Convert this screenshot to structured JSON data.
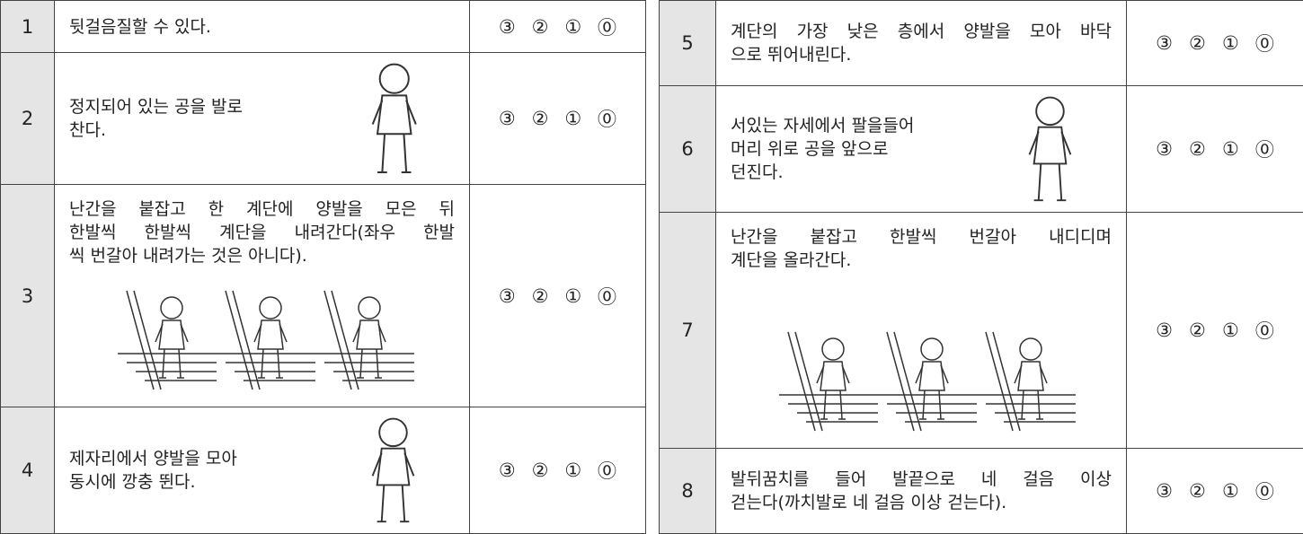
{
  "tables": [
    {
      "rows": [
        {
          "number": "1",
          "lines": [
            "뒷걸음질할 수 있다."
          ],
          "scores": [
            "③",
            "②",
            "①",
            "⓪"
          ]
        },
        {
          "number": "2",
          "lines": [
            "정지되어 있는 공을 발로",
            "찬다."
          ],
          "scores": [
            "③",
            "②",
            "①",
            "⓪"
          ]
        },
        {
          "number": "3",
          "lines": [
            "난간을 붙잡고 한 계단에 양발을 모은 뒤",
            "한발씩 한발씩 계단을 내려간다(좌우 한발",
            "씩 번갈아 내려가는 것은 아니다)."
          ],
          "scores": [
            "③",
            "②",
            "①",
            "⓪"
          ]
        },
        {
          "number": "4",
          "lines": [
            "제자리에서 양발을 모아",
            "동시에 깡충 뛴다."
          ],
          "scores": [
            "③",
            "②",
            "①",
            "⓪"
          ]
        }
      ]
    },
    {
      "rows": [
        {
          "number": "5",
          "lines": [
            "계단의 가장 낮은 층에서 양발을 모아 바닥",
            "으로 뛰어내린다."
          ],
          "scores": [
            "③",
            "②",
            "①",
            "⓪"
          ]
        },
        {
          "number": "6",
          "lines": [
            "서있는 자세에서 팔을들어",
            "머리 위로 공을 앞으로",
            "던진다."
          ],
          "scores": [
            "③",
            "②",
            "①",
            "⓪"
          ]
        },
        {
          "number": "7",
          "lines": [
            "난간을 붙잡고 한발씩 번갈아 내디디며",
            "계단을 올라간다."
          ],
          "scores": [
            "③",
            "②",
            "①",
            "⓪"
          ]
        },
        {
          "number": "8",
          "lines": [
            "발뒤꿈치를 들어 발끝으로 네 걸음 이상",
            "걷는다(까치발로 네 걸음 이상 걷는다)."
          ],
          "scores": [
            "③",
            "②",
            "①",
            "⓪"
          ]
        }
      ]
    }
  ]
}
